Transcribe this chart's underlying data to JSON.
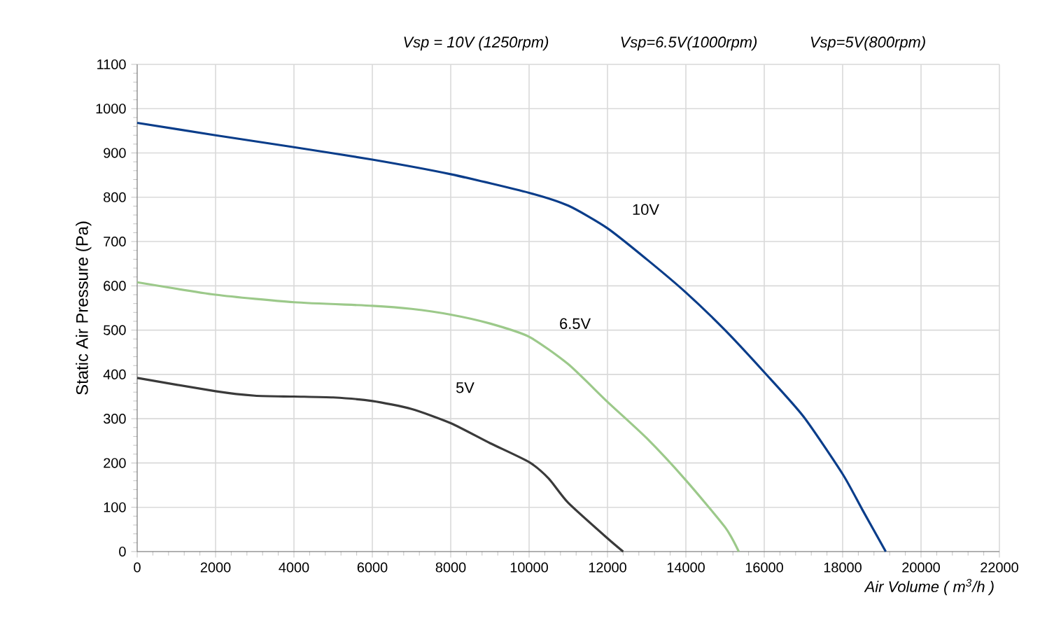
{
  "chart_data": {
    "type": "line",
    "xlabel": "*Air Volume ( m$^{3}$/h )*",
    "ylabel": "Static Air Pressure  (Pa)",
    "annotations": [
      "*Vsp = 10V (1250rpm)*",
      "*Vsp=6.5V(1000rpm)*",
      "*Vsp=5V(800rpm)*"
    ],
    "series": [
      {
        "name": "10V",
        "color": "#0a3d8a",
        "x": [
          0,
          2000,
          4000,
          6000,
          8000,
          10000,
          11000,
          12000,
          13000,
          14000,
          15000,
          16000,
          17000,
          18000,
          18500,
          19100
        ],
        "values": [
          968,
          940,
          913,
          885,
          852,
          810,
          781,
          730,
          660,
          585,
          500,
          405,
          305,
          175,
          95,
          0
        ]
      },
      {
        "name": "6.5V",
        "color": "#9cc98a",
        "x": [
          0,
          2000,
          4000,
          6000,
          7000,
          8000,
          9000,
          10000,
          11000,
          12000,
          13000,
          14000,
          15000,
          15350
        ],
        "values": [
          608,
          580,
          563,
          555,
          548,
          535,
          515,
          485,
          423,
          338,
          256,
          161,
          55,
          0
        ]
      },
      {
        "name": "5V",
        "color": "#3a3a3a",
        "x": [
          0,
          2000,
          3000,
          4000,
          5000,
          6000,
          7000,
          8000,
          9000,
          10000,
          10500,
          11000,
          12000,
          12400
        ],
        "values": [
          392,
          362,
          352,
          350,
          348,
          340,
          322,
          290,
          245,
          202,
          165,
          110,
          30,
          0
        ]
      }
    ],
    "xlim": [
      0,
      22000
    ],
    "ylim": [
      0,
      1100
    ],
    "xticks": [
      0,
      2000,
      4000,
      6000,
      8000,
      10000,
      12000,
      14000,
      16000,
      18000,
      20000,
      22000
    ],
    "yticks": [
      0,
      100,
      200,
      300,
      400,
      500,
      600,
      700,
      800,
      900,
      1000,
      1100
    ],
    "grid": true,
    "legend": false,
    "marker": "none",
    "line_style": "solid"
  }
}
